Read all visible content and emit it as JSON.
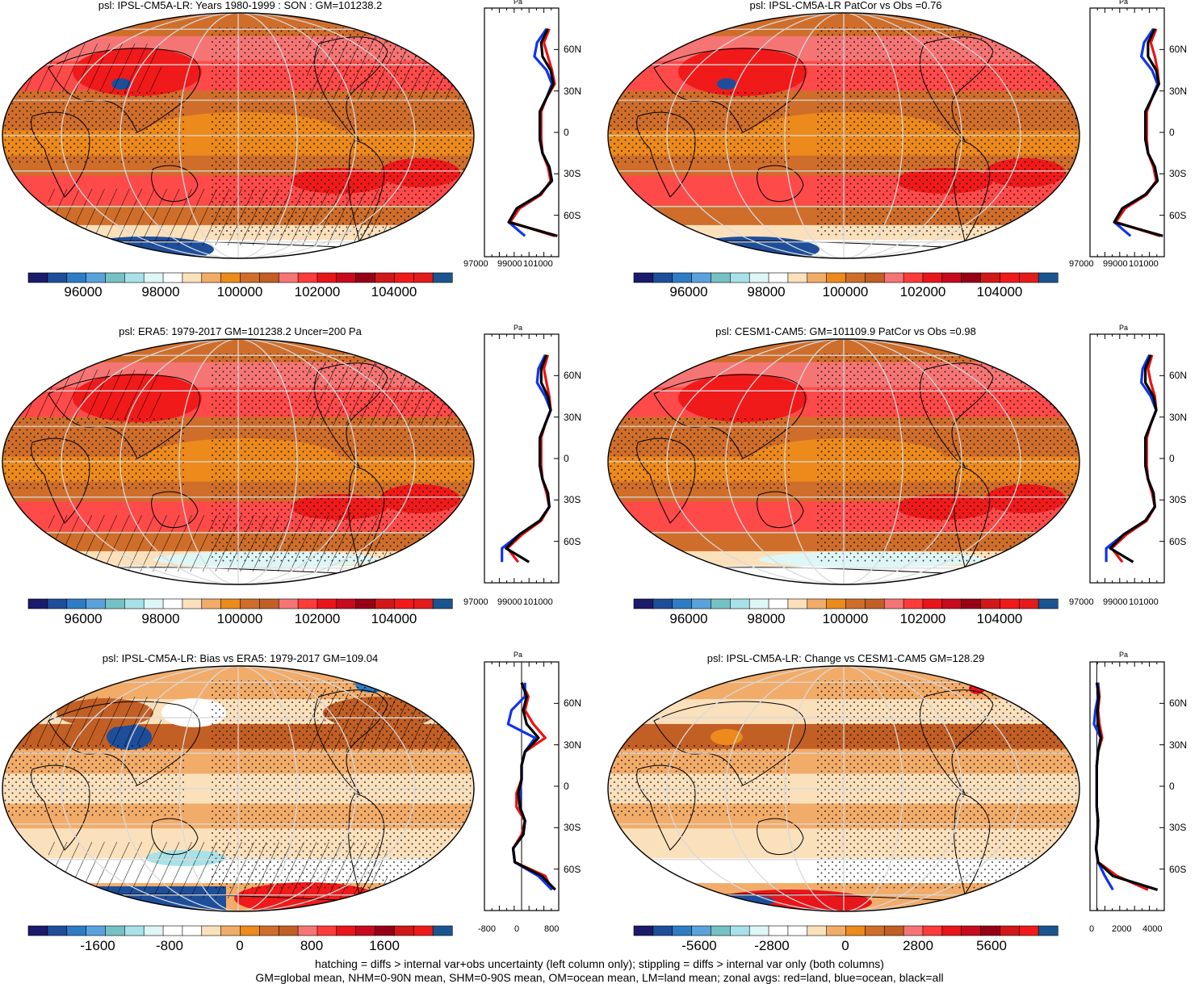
{
  "chart_data": [
    {
      "type": "heatmap",
      "title": "psl: IPSL-CM5A-LR: Years 1980-1999 : SON : GM=101238.2",
      "colorbar": {
        "ticks": [
          "96000",
          "98000",
          "100000",
          "102000",
          "104000"
        ],
        "min": 94500,
        "max": 105500
      },
      "zonal": {
        "xticks": [
          "97000",
          "99000",
          "101000"
        ],
        "xlim": [
          97000,
          102500
        ],
        "unit": "Pa",
        "lat": [
          75,
          65,
          55,
          45,
          35,
          25,
          15,
          5,
          -5,
          -15,
          -25,
          -35,
          -45,
          -55,
          -65,
          -75
        ],
        "series": [
          {
            "color": "red",
            "values": [
              101800,
              101400,
              101700,
              102000,
              102200,
              101600,
              101200,
              101200,
              101200,
              101300,
              101700,
              101900,
              101200,
              99600,
              98900,
              102200
            ]
          },
          {
            "color": "blue",
            "values": [
              101600,
              100900,
              100700,
              101600,
              102000,
              101600,
              101100,
              101100,
              101100,
              101300,
              101800,
              102000,
              101100,
              99400,
              98800,
              100000
            ]
          },
          {
            "color": "black",
            "values": [
              101700,
              101200,
              101300,
              101900,
              102100,
              101600,
              101100,
              101100,
              101100,
              101300,
              101800,
              102000,
              101100,
              99400,
              98800,
              102400
            ]
          }
        ]
      }
    },
    {
      "type": "heatmap",
      "title": "psl: IPSL-CM5A-LR PatCor vs Obs =0.76",
      "colorbar": {
        "ticks": [
          "96000",
          "98000",
          "100000",
          "102000",
          "104000"
        ],
        "min": 94500,
        "max": 105500
      },
      "zonal": {
        "xticks": [
          "97000",
          "99000",
          "101000"
        ],
        "xlim": [
          97000,
          102500
        ],
        "unit": "Pa",
        "lat": [
          75,
          65,
          55,
          45,
          35,
          25,
          15,
          5,
          -5,
          -15,
          -25,
          -35,
          -45,
          -55,
          -65,
          -75
        ],
        "series": [
          {
            "color": "red",
            "values": [
              101900,
              101500,
              101800,
              102000,
              102100,
              101600,
              101200,
              101200,
              101200,
              101300,
              101700,
              101900,
              101200,
              99600,
              98900,
              102200
            ]
          },
          {
            "color": "blue",
            "values": [
              101700,
              101000,
              100800,
              101600,
              102000,
              101600,
              101100,
              101100,
              101100,
              101300,
              101800,
              102000,
              101100,
              99400,
              98800,
              100000
            ]
          },
          {
            "color": "black",
            "values": [
              101800,
              101300,
              101300,
              101900,
              102100,
              101600,
              101100,
              101100,
              101100,
              101300,
              101800,
              102000,
              101100,
              99400,
              98800,
              102400
            ]
          }
        ]
      }
    },
    {
      "type": "heatmap",
      "title": "psl: ERA5: 1979-2017 GM=101238.2 Uncer=200 Pa",
      "colorbar": {
        "ticks": [
          "96000",
          "98000",
          "100000",
          "102000",
          "104000"
        ],
        "min": 94500,
        "max": 105500
      },
      "zonal": {
        "xticks": [
          "97000",
          "99000",
          "101000"
        ],
        "xlim": [
          97000,
          102500
        ],
        "unit": "Pa",
        "lat": [
          75,
          65,
          55,
          45,
          35,
          25,
          15,
          5,
          -5,
          -15,
          -25,
          -35,
          -45,
          -55,
          -65,
          -75
        ],
        "series": [
          {
            "color": "red",
            "values": [
              101700,
              101400,
              101600,
              101800,
              101900,
              101500,
              101200,
              101200,
              101200,
              101300,
              101600,
              101800,
              101200,
              99800,
              98700,
              99500
            ]
          },
          {
            "color": "blue",
            "values": [
              101500,
              101000,
              100900,
              101500,
              101900,
              101500,
              101100,
              101100,
              101100,
              101300,
              101700,
              101800,
              101100,
              99600,
              98300,
              98300
            ]
          },
          {
            "color": "black",
            "values": [
              101600,
              101200,
              101200,
              101700,
              101900,
              101500,
              101100,
              101100,
              101100,
              101300,
              101700,
              101800,
              101100,
              99600,
              98600,
              100300
            ]
          }
        ]
      }
    },
    {
      "type": "heatmap",
      "title": "psl: CESM1-CAM5: GM=101109.9 PatCor vs Obs =0.98",
      "colorbar": {
        "ticks": [
          "96000",
          "98000",
          "100000",
          "102000",
          "104000"
        ],
        "min": 94500,
        "max": 105500
      },
      "zonal": {
        "xticks": [
          "97000",
          "99000",
          "101000"
        ],
        "xlim": [
          97000,
          102500
        ],
        "unit": "Pa",
        "lat": [
          75,
          65,
          55,
          45,
          35,
          25,
          15,
          5,
          -5,
          -15,
          -25,
          -35,
          -45,
          -55,
          -65,
          -75
        ],
        "series": [
          {
            "color": "red",
            "values": [
              101600,
              101300,
              101500,
              101800,
              101900,
              101500,
              101200,
              101200,
              101200,
              101300,
              101600,
              101800,
              101200,
              99700,
              98600,
              99400
            ]
          },
          {
            "color": "blue",
            "values": [
              101400,
              100900,
              100800,
              101500,
              101900,
              101500,
              101100,
              101100,
              101100,
              101300,
              101700,
              101800,
              101100,
              99500,
              98200,
              98200
            ]
          },
          {
            "color": "black",
            "values": [
              101500,
              101100,
              101100,
              101700,
              101900,
              101500,
              101100,
              101100,
              101100,
              101300,
              101700,
              101800,
              101100,
              99500,
              98500,
              100200
            ]
          }
        ]
      }
    },
    {
      "type": "heatmap",
      "title": "psl: IPSL-CM5A-LR: Bias vs ERA5: 1979-2017  GM=109.04",
      "colorbar": {
        "ticks": [
          "-1600",
          "-800",
          "0",
          "800",
          "1600"
        ],
        "min": -2400,
        "max": 2400
      },
      "zonal": {
        "xticks": [
          "-800",
          "0",
          "800"
        ],
        "xlim": [
          -1100,
          1100
        ],
        "unit": "Pa",
        "zero_line": true,
        "lat": [
          75,
          65,
          55,
          45,
          35,
          25,
          15,
          5,
          -5,
          -15,
          -25,
          -35,
          -45,
          -55,
          -65,
          -75
        ],
        "series": [
          {
            "color": "red",
            "values": [
              0,
              200,
              100,
              350,
              700,
              100,
              0,
              0,
              -150,
              -150,
              100,
              0,
              -250,
              -200,
              700,
              900
            ]
          },
          {
            "color": "blue",
            "values": [
              100,
              100,
              -300,
              -400,
              400,
              100,
              0,
              0,
              -50,
              -50,
              100,
              50,
              -250,
              -200,
              500,
              900
            ]
          },
          {
            "color": "black",
            "values": [
              0,
              150,
              50,
              150,
              500,
              100,
              0,
              0,
              -100,
              -50,
              100,
              50,
              -250,
              -200,
              600,
              1000
            ]
          }
        ]
      }
    },
    {
      "type": "heatmap",
      "title": "psl: IPSL-CM5A-LR: Change vs CESM1-CAM5 GM=128.29",
      "colorbar": {
        "ticks": [
          "-5600",
          "-2800",
          "0",
          "2800",
          "5600"
        ],
        "min": -8400,
        "max": 8400
      },
      "zonal": {
        "xticks": [
          "0",
          "2000",
          "4000"
        ],
        "xlim": [
          -500,
          5000
        ],
        "unit": "Pa",
        "zero_line": true,
        "lat": [
          75,
          65,
          55,
          45,
          35,
          25,
          15,
          5,
          -5,
          -15,
          -25,
          -35,
          -45,
          -55,
          -65,
          -75
        ],
        "series": [
          {
            "color": "red",
            "values": [
              100,
              200,
              100,
              200,
              400,
              100,
              0,
              0,
              0,
              0,
              100,
              50,
              -50,
              100,
              1500,
              3800
            ]
          },
          {
            "color": "blue",
            "values": [
              100,
              100,
              -100,
              -200,
              300,
              100,
              0,
              0,
              0,
              0,
              100,
              50,
              -50,
              100,
              600,
              1200
            ]
          },
          {
            "color": "black",
            "values": [
              0,
              150,
              50,
              100,
              300,
              100,
              0,
              0,
              0,
              0,
              100,
              50,
              -50,
              100,
              1200,
              4500
            ]
          }
        ]
      }
    }
  ],
  "lat_labels": [
    "60N",
    "30N",
    "0",
    "30S",
    "60S"
  ],
  "footer": {
    "line1": "hatching = diffs > internal var+obs uncertainty (left column only); stippling = diffs > internal var only (both columns)",
    "line2": "GM=global mean, NHM=0-90N mean, SHM=0-90S mean, OM=ocean mean, LM=land mean; zonal avgs: red=land, blue=ocean, black=all"
  },
  "colors": {
    "abs_scale": [
      "#1b1a6b",
      "#1e4e9a",
      "#2e7cc4",
      "#5aa2dc",
      "#76c1c4",
      "#a8e2e8",
      "#dff6f6",
      "#ffffff",
      "#fbe0bc",
      "#f2ac6a",
      "#ec8a1c",
      "#cf6e2b",
      "#c25f25",
      "#f57575",
      "#ff3b3b",
      "#e8151b",
      "#c70a1e",
      "#960017",
      "#d01818",
      "#f01a1a",
      "#e41b1b",
      "#1a5590"
    ],
    "diff_scale": [
      "#1b1a6b",
      "#1e4e9a",
      "#2e7cc4",
      "#5aa2dc",
      "#76c1c4",
      "#a8e2e8",
      "#dff6f6",
      "#ffffff",
      "#ffffff",
      "#fbe0bc",
      "#f2ac6a",
      "#ec8a1c",
      "#cf6e2b",
      "#c25f25",
      "#f57575",
      "#ff3b3b",
      "#e8151b",
      "#c70a1e",
      "#960017",
      "#d01818",
      "#f01a1a",
      "#1a5590"
    ]
  }
}
